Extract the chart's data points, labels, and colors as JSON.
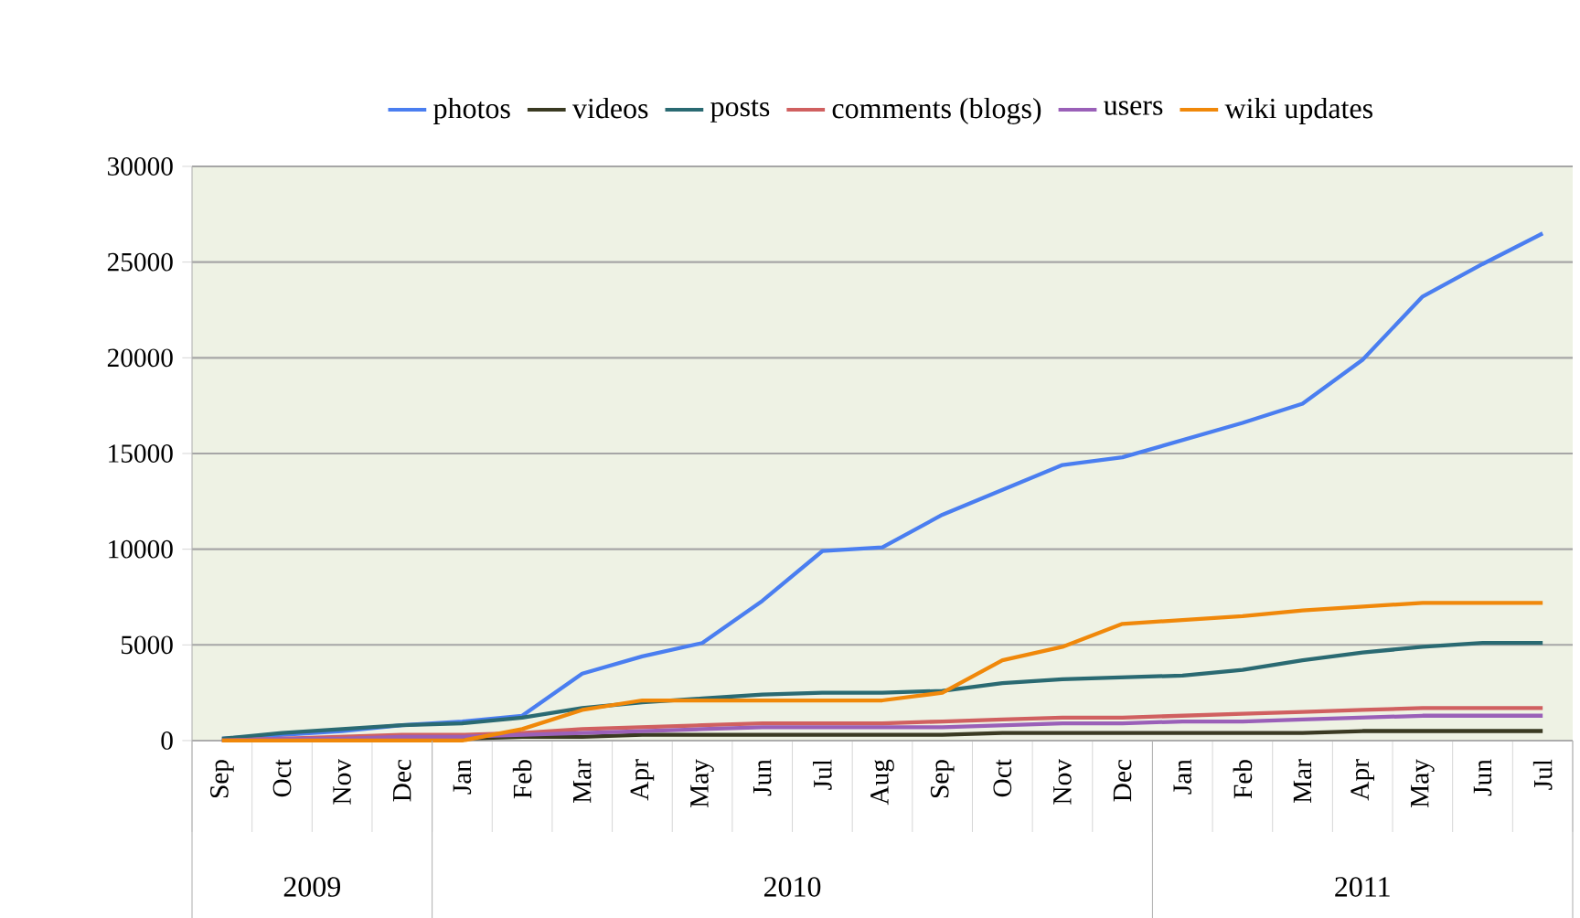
{
  "chart_data": {
    "type": "line",
    "categories": [
      "Sep",
      "Oct",
      "Nov",
      "Dec",
      "Jan",
      "Feb",
      "Mar",
      "Apr",
      "May",
      "Jun",
      "Jul",
      "Aug",
      "Sep",
      "Oct",
      "Nov",
      "Dec",
      "Jan",
      "Feb",
      "Mar",
      "Apr",
      "May",
      "Jun",
      "Jul"
    ],
    "series": [
      {
        "name": "photos",
        "color": "#4a7ef0",
        "values": [
          100,
          300,
          500,
          800,
          1000,
          1300,
          3500,
          4400,
          5100,
          7300,
          9900,
          10100,
          11800,
          13100,
          14400,
          14800,
          15700,
          16600,
          17600,
          19900,
          23200,
          24900,
          26500
        ]
      },
      {
        "name": "videos",
        "color": "#3a3a22",
        "values": [
          0,
          0,
          0,
          100,
          100,
          200,
          200,
          300,
          300,
          300,
          300,
          300,
          300,
          400,
          400,
          400,
          400,
          400,
          400,
          500,
          500,
          500,
          500
        ]
      },
      {
        "name": "posts",
        "color": "#2a6a72",
        "values": [
          100,
          400,
          600,
          800,
          900,
          1200,
          1700,
          2000,
          2200,
          2400,
          2500,
          2500,
          2600,
          3000,
          3200,
          3300,
          3400,
          3700,
          4200,
          4600,
          4900,
          5100,
          5100
        ]
      },
      {
        "name": "comments (blogs)",
        "color": "#d06060",
        "values": [
          0,
          100,
          200,
          300,
          300,
          400,
          600,
          700,
          800,
          900,
          900,
          900,
          1000,
          1100,
          1200,
          1200,
          1300,
          1400,
          1500,
          1600,
          1700,
          1700,
          1700
        ]
      },
      {
        "name": "users",
        "color": "#9a60b8",
        "values": [
          0,
          100,
          100,
          200,
          200,
          300,
          400,
          500,
          600,
          700,
          700,
          700,
          700,
          800,
          900,
          900,
          1000,
          1000,
          1100,
          1200,
          1300,
          1300,
          1300
        ]
      },
      {
        "name": "wiki updates",
        "color": "#f0880a",
        "values": [
          0,
          0,
          0,
          0,
          0,
          600,
          1600,
          2100,
          2100,
          2100,
          2100,
          2100,
          2500,
          4200,
          4900,
          6100,
          6300,
          6500,
          6800,
          7000,
          7200,
          7200,
          7200
        ]
      }
    ],
    "ylim": [
      0,
      30000
    ],
    "yticks": [
      0,
      5000,
      10000,
      15000,
      20000,
      25000,
      30000
    ],
    "annotations": [
      "2009",
      "2010",
      "2011"
    ],
    "grid": "y",
    "legend": "top",
    "marker": "none",
    "line_style": "solid"
  }
}
